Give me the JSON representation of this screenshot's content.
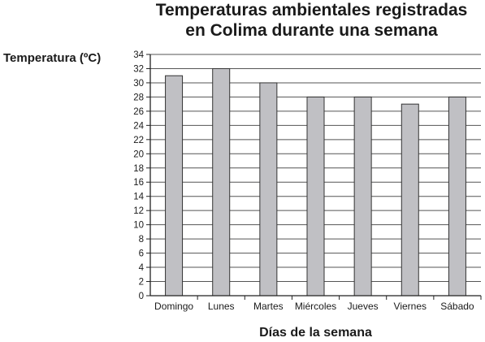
{
  "chart_data": {
    "type": "bar",
    "title_lines": [
      "Temperaturas ambientales registradas",
      "en Colima durante una semana"
    ],
    "ylabel": "Temperatura (ºC)",
    "xlabel": "Días de la semana",
    "categories": [
      "Domingo",
      "Lunes",
      "Martes",
      "Miércoles",
      "Jueves",
      "Viernes",
      "Sábado"
    ],
    "values": [
      31,
      32,
      30,
      28,
      28,
      27,
      28
    ],
    "ylim": [
      0,
      34
    ],
    "ytick_step": 2,
    "grid": true,
    "bar_color": "#c0c0c4",
    "bar_edge_color": "#333333"
  }
}
